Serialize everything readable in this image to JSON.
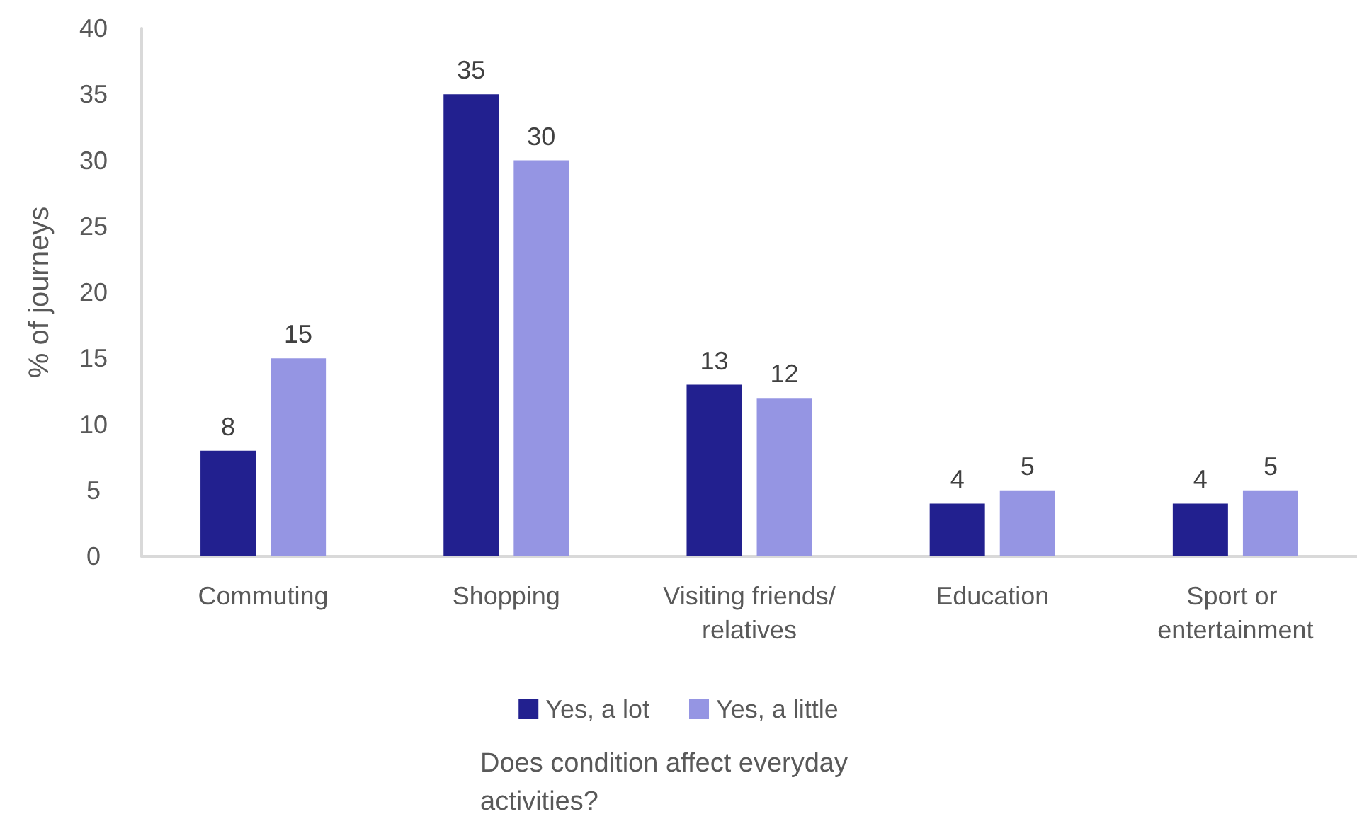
{
  "chart_data": {
    "type": "bar",
    "ylabel": "% of journeys",
    "legend_title": "Does condition affect everyday activities?",
    "categories": [
      "Commuting",
      "Shopping",
      "Visiting friends/relatives",
      "Education",
      "Sport or entertainment"
    ],
    "series": [
      {
        "name": "Yes, a lot",
        "color": "#22208f",
        "values": [
          8,
          35,
          13,
          4,
          4
        ]
      },
      {
        "name": "Yes, a little",
        "color": "#9595e3",
        "values": [
          15,
          30,
          12,
          5,
          5
        ]
      }
    ],
    "ylim": [
      0,
      40
    ],
    "yticks": [
      0,
      5,
      10,
      15,
      20,
      25,
      30,
      35,
      40
    ],
    "data_labels": true,
    "grid": false,
    "legend": "bottom"
  }
}
